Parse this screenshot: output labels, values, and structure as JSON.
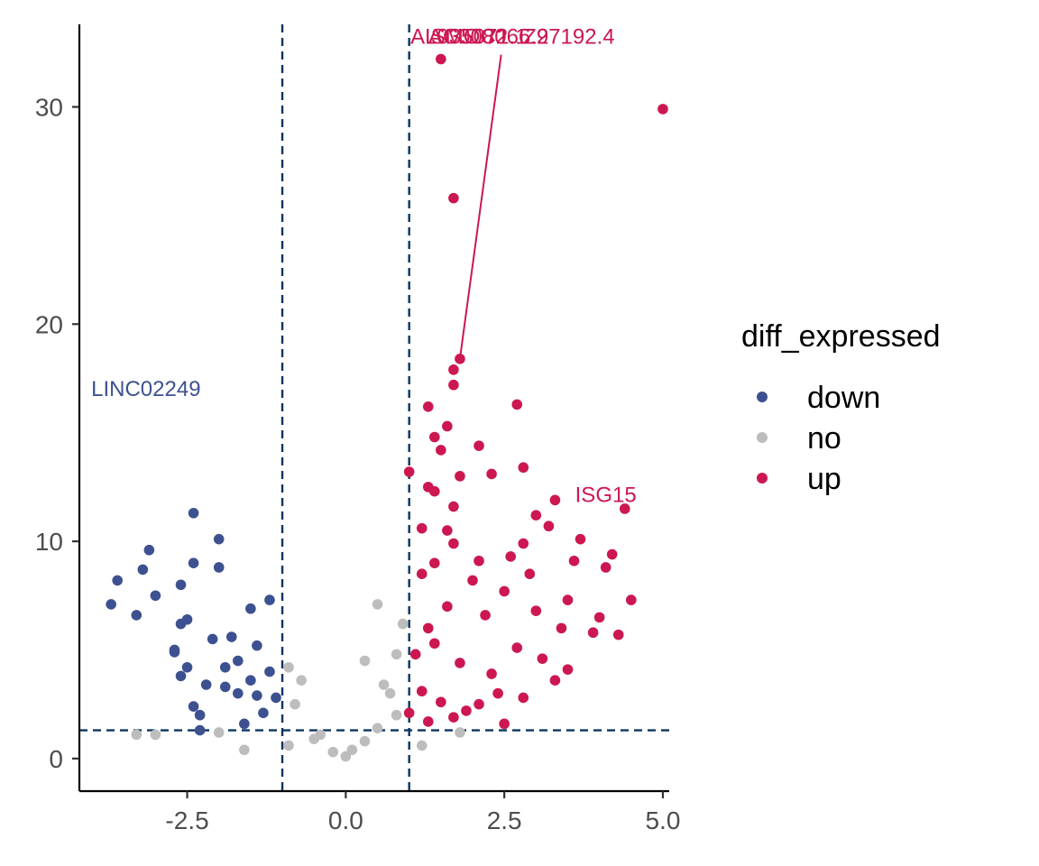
{
  "chart_data": {
    "type": "scatter",
    "title": "",
    "xlabel": "",
    "ylabel": "",
    "xlim": [
      -4.2,
      5.1
    ],
    "ylim": [
      -1.5,
      33.8
    ],
    "x_ticks": [
      -2.5,
      0.0,
      2.5,
      5.0
    ],
    "x_tick_labels": [
      "-2.5",
      "0.0",
      "2.5",
      "5.0"
    ],
    "y_ticks": [
      0,
      10,
      20,
      30
    ],
    "y_tick_labels": [
      "0",
      "10",
      "20",
      "30"
    ],
    "grid": false,
    "thresholds": {
      "vertical": [
        -1,
        1
      ],
      "horizontal": 1.3
    },
    "legend": {
      "title": "diff_expressed",
      "position": "right",
      "entries": [
        {
          "label": "down",
          "color": "#3d5191"
        },
        {
          "label": "no",
          "color": "#bdbdbd"
        },
        {
          "label": "up",
          "color": "#cc1751"
        }
      ]
    },
    "colors": {
      "down": "#3d5191",
      "no": "#bdbdbd",
      "up": "#cc1751",
      "threshold_line": "#0b3461"
    },
    "series": [
      {
        "name": "down",
        "points": [
          [
            -3.7,
            7.1
          ],
          [
            -3.6,
            8.2
          ],
          [
            -3.3,
            6.6
          ],
          [
            -3.2,
            8.7
          ],
          [
            -3.1,
            9.6
          ],
          [
            -3.0,
            7.5
          ],
          [
            -2.7,
            5.0
          ],
          [
            -2.6,
            6.2
          ],
          [
            -2.6,
            8.0
          ],
          [
            -2.5,
            6.4
          ],
          [
            -2.4,
            11.3
          ],
          [
            -2.4,
            9.0
          ],
          [
            -2.5,
            4.2
          ],
          [
            -2.4,
            2.4
          ],
          [
            -2.3,
            1.3
          ],
          [
            -2.2,
            3.4
          ],
          [
            -2.1,
            5.5
          ],
          [
            -2.0,
            10.1
          ],
          [
            -2.0,
            8.8
          ],
          [
            -1.9,
            4.2
          ],
          [
            -1.8,
            5.6
          ],
          [
            -1.7,
            3.0
          ],
          [
            -1.6,
            1.6
          ],
          [
            -1.5,
            3.6
          ],
          [
            -1.5,
            6.9
          ],
          [
            -1.4,
            5.2
          ],
          [
            -1.3,
            2.1
          ],
          [
            -1.2,
            4.0
          ],
          [
            -1.2,
            7.3
          ],
          [
            -1.1,
            2.8
          ],
          [
            -2.7,
            4.9
          ],
          [
            -2.6,
            3.8
          ],
          [
            -2.3,
            2.0
          ],
          [
            -1.9,
            3.3
          ],
          [
            -1.7,
            4.5
          ],
          [
            -1.4,
            2.9
          ]
        ]
      },
      {
        "name": "no",
        "points": [
          [
            -3.3,
            1.1
          ],
          [
            -3.0,
            1.1
          ],
          [
            -2.0,
            1.2
          ],
          [
            -1.6,
            0.4
          ],
          [
            -0.9,
            4.2
          ],
          [
            -0.9,
            0.6
          ],
          [
            -0.7,
            3.6
          ],
          [
            -0.5,
            0.9
          ],
          [
            -0.4,
            1.1
          ],
          [
            -0.2,
            0.3
          ],
          [
            0.0,
            0.1
          ],
          [
            0.1,
            0.4
          ],
          [
            0.3,
            0.8
          ],
          [
            0.3,
            4.5
          ],
          [
            0.5,
            1.4
          ],
          [
            0.5,
            7.1
          ],
          [
            0.7,
            3.0
          ],
          [
            0.8,
            4.8
          ],
          [
            0.9,
            6.2
          ],
          [
            0.8,
            2.0
          ],
          [
            1.2,
            0.6
          ],
          [
            1.8,
            1.2
          ],
          [
            -0.8,
            2.5
          ],
          [
            0.6,
            3.4
          ]
        ]
      },
      {
        "name": "up",
        "points": [
          [
            1.5,
            32.2
          ],
          [
            5.0,
            29.9
          ],
          [
            1.7,
            25.8
          ],
          [
            1.8,
            18.4
          ],
          [
            1.7,
            17.9
          ],
          [
            1.7,
            17.2
          ],
          [
            2.7,
            16.3
          ],
          [
            1.3,
            16.2
          ],
          [
            1.6,
            15.3
          ],
          [
            1.4,
            14.8
          ],
          [
            2.1,
            14.4
          ],
          [
            1.5,
            14.2
          ],
          [
            1.0,
            13.2
          ],
          [
            1.8,
            13.0
          ],
          [
            2.3,
            13.1
          ],
          [
            2.8,
            13.4
          ],
          [
            1.3,
            12.5
          ],
          [
            1.4,
            12.3
          ],
          [
            3.3,
            11.9
          ],
          [
            4.4,
            11.5
          ],
          [
            1.7,
            11.6
          ],
          [
            3.0,
            11.2
          ],
          [
            1.2,
            10.6
          ],
          [
            1.6,
            10.5
          ],
          [
            3.2,
            10.7
          ],
          [
            3.7,
            10.1
          ],
          [
            1.7,
            9.9
          ],
          [
            2.8,
            9.9
          ],
          [
            4.2,
            9.4
          ],
          [
            1.4,
            9.0
          ],
          [
            2.1,
            9.1
          ],
          [
            2.6,
            9.3
          ],
          [
            3.6,
            9.1
          ],
          [
            4.1,
            8.8
          ],
          [
            1.2,
            8.5
          ],
          [
            2.9,
            8.5
          ],
          [
            4.5,
            7.3
          ],
          [
            3.5,
            7.3
          ],
          [
            4.0,
            6.5
          ],
          [
            4.3,
            5.7
          ],
          [
            3.4,
            6.0
          ],
          [
            3.9,
            5.8
          ],
          [
            3.5,
            4.1
          ],
          [
            2.5,
            1.6
          ],
          [
            1.3,
            6.0
          ],
          [
            1.6,
            7.0
          ],
          [
            2.0,
            8.2
          ],
          [
            2.2,
            6.6
          ],
          [
            2.5,
            7.7
          ],
          [
            3.0,
            6.8
          ],
          [
            1.1,
            4.8
          ],
          [
            1.4,
            5.3
          ],
          [
            1.8,
            4.4
          ],
          [
            2.3,
            3.9
          ],
          [
            2.7,
            5.1
          ],
          [
            3.1,
            4.6
          ],
          [
            1.2,
            3.1
          ],
          [
            1.5,
            2.6
          ],
          [
            1.9,
            2.2
          ],
          [
            2.4,
            3.0
          ],
          [
            2.8,
            2.8
          ],
          [
            3.3,
            3.6
          ],
          [
            1.0,
            2.1
          ],
          [
            1.3,
            1.7
          ],
          [
            1.7,
            1.9
          ],
          [
            2.1,
            2.5
          ]
        ]
      }
    ],
    "annotations": [
      {
        "text": "AL035071.1",
        "series": "up",
        "point": [
          1.5,
          32.2
        ],
        "label_at": [
          1.02,
          32.9
        ],
        "anchor": "start"
      },
      {
        "text": "SMOC2",
        "series": "up",
        "point": [
          1.7,
          25.8
        ],
        "label_at": [
          1.95,
          32.9
        ],
        "anchor": "middle"
      },
      {
        "text": "AC008066.2",
        "series": "up",
        "point": [
          1.7,
          17.9
        ],
        "label_at": [
          2.25,
          32.9
        ],
        "anchor": "middle"
      },
      {
        "text": "Z97192.4",
        "series": "up",
        "point": [
          1.8,
          18.4
        ],
        "label_at": [
          3.52,
          32.9
        ],
        "anchor": "middle",
        "leader_to": [
          2.45,
          32.4
        ]
      },
      {
        "text": "LINC02249",
        "series": "down",
        "label_at": [
          -3.15,
          16.7
        ],
        "anchor": "middle"
      },
      {
        "text": "ISG15",
        "series": "up",
        "point": [
          4.4,
          11.5
        ],
        "label_at": [
          4.1,
          11.8
        ],
        "anchor": "middle"
      }
    ]
  }
}
